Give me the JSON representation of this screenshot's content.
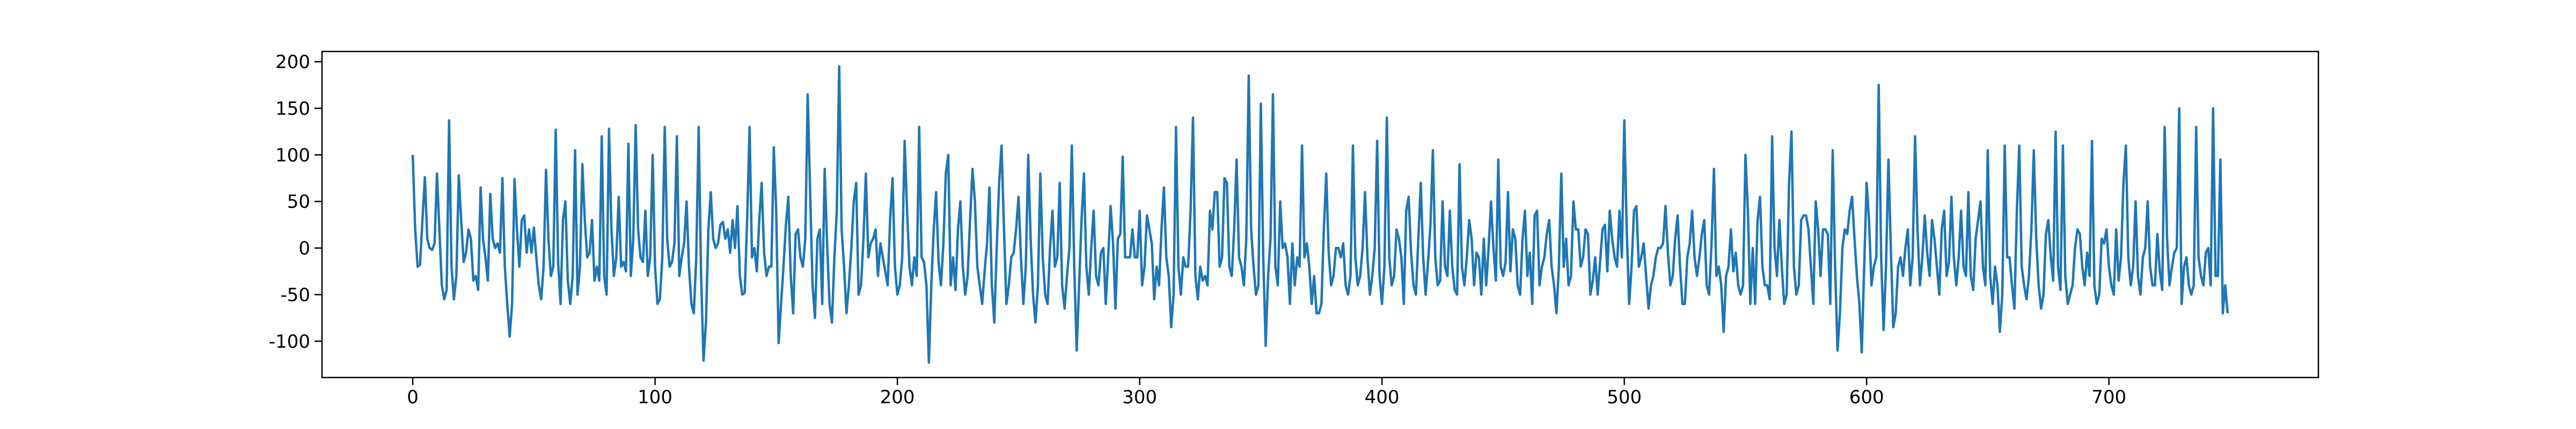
{
  "chart_data": {
    "type": "line",
    "color": "#1f77b4",
    "xlim": [
      -37.45,
      786.45
    ],
    "xticks": [
      0,
      100,
      200,
      300,
      400,
      500,
      600,
      700
    ],
    "ylim": [
      -139,
      211
    ],
    "yticks": [
      -100,
      -50,
      0,
      50,
      100,
      150,
      200
    ],
    "values": [
      100,
      20,
      -20,
      -18,
      30,
      76,
      10,
      0,
      -2,
      5,
      80,
      20,
      -40,
      -55,
      -45,
      137,
      -20,
      -55,
      -30,
      78,
      30,
      -15,
      -5,
      20,
      10,
      -35,
      -30,
      -45,
      65,
      10,
      -10,
      -35,
      58,
      10,
      0,
      5,
      -5,
      75,
      -20,
      -60,
      -95,
      -60,
      74,
      20,
      -20,
      30,
      35,
      -5,
      20,
      -5,
      22,
      -10,
      -40,
      -55,
      -20,
      84,
      10,
      -30,
      -20,
      127,
      -15,
      -60,
      30,
      50,
      -35,
      -60,
      -30,
      105,
      -50,
      -20,
      90,
      30,
      -10,
      -5,
      30,
      -35,
      -20,
      -35,
      120,
      -30,
      -50,
      128,
      20,
      -30,
      -10,
      55,
      -20,
      -15,
      -25,
      112,
      -30,
      10,
      132,
      20,
      -10,
      -15,
      40,
      -30,
      -10,
      100,
      -20,
      -60,
      -55,
      -10,
      130,
      10,
      -20,
      -15,
      5,
      120,
      -30,
      -10,
      5,
      50,
      -20,
      -60,
      -70,
      -10,
      130,
      -30,
      -121,
      -80,
      20,
      60,
      10,
      0,
      5,
      25,
      28,
      10,
      20,
      -5,
      30,
      0,
      45,
      -30,
      -50,
      -48,
      30,
      130,
      -10,
      0,
      -25,
      30,
      70,
      -5,
      -30,
      -20,
      -20,
      108,
      40,
      -102,
      -60,
      -20,
      25,
      55,
      -30,
      -70,
      15,
      20,
      -10,
      -20,
      10,
      165,
      60,
      -40,
      -75,
      10,
      20,
      -60,
      85,
      5,
      -60,
      -80,
      -10,
      40,
      195,
      20,
      -20,
      -70,
      -40,
      0,
      50,
      70,
      -50,
      -40,
      10,
      80,
      -10,
      5,
      10,
      20,
      -30,
      5,
      -10,
      -25,
      -40,
      30,
      75,
      -20,
      -50,
      -40,
      -10,
      115,
      40,
      -20,
      -40,
      -10,
      -30,
      130,
      -10,
      -15,
      -40,
      -123,
      -40,
      20,
      60,
      -15,
      -40,
      5,
      80,
      100,
      -40,
      -10,
      -45,
      20,
      50,
      -20,
      -50,
      -30,
      30,
      85,
      50,
      -20,
      -40,
      -60,
      -25,
      5,
      65,
      -40,
      -80,
      0,
      70,
      110,
      20,
      -60,
      -40,
      -10,
      -5,
      20,
      55,
      -10,
      -60,
      -20,
      100,
      10,
      -50,
      -80,
      -40,
      80,
      -10,
      -50,
      -60,
      0,
      40,
      -20,
      -10,
      70,
      -40,
      -65,
      -30,
      0,
      110,
      -20,
      -110,
      -40,
      30,
      80,
      -20,
      -50,
      0,
      40,
      -30,
      -40,
      -5,
      0,
      -60,
      -10,
      45,
      5,
      -65,
      10,
      15,
      98,
      -10,
      -10,
      -10,
      20,
      -10,
      -10,
      40,
      -40,
      -20,
      35,
      20,
      5,
      -55,
      -20,
      -40,
      20,
      65,
      -10,
      -30,
      -85,
      -50,
      130,
      -20,
      -50,
      -10,
      -20,
      -20,
      40,
      140,
      -30,
      -55,
      -20,
      -35,
      -30,
      -40,
      40,
      20,
      60,
      60,
      -20,
      -10,
      75,
      70,
      -20,
      -30,
      20,
      95,
      -10,
      -20,
      -40,
      10,
      185,
      20,
      -20,
      -50,
      -40,
      155,
      -10,
      -105,
      -30,
      10,
      165,
      -20,
      -40,
      50,
      0,
      5,
      -10,
      -60,
      5,
      -40,
      -10,
      -20,
      110,
      -10,
      5,
      -20,
      -60,
      -30,
      -70,
      -70,
      -60,
      20,
      80,
      -5,
      -40,
      -30,
      0,
      0,
      -10,
      5,
      -40,
      -50,
      -30,
      110,
      -10,
      -40,
      -30,
      0,
      60,
      -10,
      -50,
      -30,
      0,
      115,
      -30,
      -60,
      -20,
      140,
      -10,
      -40,
      -30,
      20,
      10,
      -10,
      -60,
      40,
      55,
      -5,
      -40,
      -50,
      10,
      70,
      -10,
      -50,
      -15,
      25,
      105,
      -10,
      -40,
      -35,
      50,
      -20,
      -30,
      40,
      -20,
      -45,
      -50,
      90,
      -20,
      -40,
      -10,
      30,
      10,
      -40,
      -5,
      -10,
      -50,
      10,
      -40,
      0,
      50,
      0,
      -35,
      95,
      -20,
      -30,
      -15,
      60,
      -25,
      20,
      10,
      -40,
      -50,
      10,
      40,
      -30,
      -5,
      -60,
      35,
      40,
      -40,
      -20,
      -10,
      15,
      30,
      -20,
      -40,
      -70,
      -20,
      80,
      -20,
      10,
      -40,
      -30,
      50,
      20,
      20,
      -20,
      -10,
      20,
      15,
      -50,
      -35,
      -10,
      -50,
      -15,
      20,
      25,
      -25,
      40,
      10,
      -10,
      -20,
      40,
      -10,
      137,
      20,
      -60,
      -20,
      40,
      45,
      -20,
      -10,
      5,
      -30,
      -65,
      -40,
      -30,
      -10,
      0,
      0,
      5,
      45,
      -5,
      -40,
      -30,
      10,
      35,
      -20,
      -60,
      -60,
      -10,
      5,
      40,
      -10,
      -30,
      -10,
      15,
      30,
      -40,
      -50,
      5,
      85,
      -30,
      -20,
      -40,
      -90,
      -30,
      -20,
      20,
      -25,
      -5,
      -40,
      -50,
      -40,
      100,
      40,
      -60,
      0,
      -60,
      30,
      55,
      -20,
      -40,
      -40,
      -55,
      120,
      0,
      -30,
      30,
      -20,
      -60,
      -50,
      70,
      125,
      -20,
      -50,
      -40,
      30,
      35,
      35,
      20,
      -20,
      -60,
      50,
      20,
      -30,
      20,
      20,
      15,
      -60,
      105,
      -20,
      -110,
      -70,
      0,
      20,
      15,
      40,
      55,
      10,
      -30,
      -60,
      -112,
      -20,
      70,
      30,
      -40,
      -20,
      -10,
      175,
      -10,
      -88,
      -20,
      95,
      0,
      -85,
      -70,
      -20,
      -10,
      -30,
      0,
      20,
      -40,
      -10,
      120,
      20,
      -40,
      -10,
      35,
      -5,
      -30,
      30,
      10,
      -20,
      -50,
      20,
      40,
      -30,
      -15,
      55,
      -10,
      -40,
      -10,
      40,
      -20,
      -30,
      60,
      -30,
      -45,
      10,
      30,
      50,
      -20,
      -40,
      105,
      -30,
      -60,
      -20,
      -40,
      -90,
      -50,
      110,
      -10,
      -10,
      -40,
      -65,
      40,
      110,
      -20,
      -40,
      -55,
      -30,
      20,
      105,
      10,
      -40,
      -65,
      -50,
      15,
      30,
      -10,
      -35,
      125,
      -20,
      -45,
      110,
      -30,
      -60,
      -50,
      -40,
      0,
      20,
      15,
      -20,
      -40,
      -5,
      -30,
      115,
      -40,
      -60,
      -50,
      10,
      5,
      20,
      -20,
      -40,
      -50,
      20,
      -35,
      -10,
      70,
      110,
      -10,
      -40,
      -20,
      50,
      -30,
      -50,
      -10,
      0,
      50,
      -20,
      -40,
      -40,
      15,
      -25,
      -45,
      130,
      10,
      -40,
      -20,
      -5,
      0,
      150,
      -60,
      -20,
      -10,
      -40,
      -50,
      -40,
      130,
      -10,
      -30,
      -40,
      -5,
      0,
      -40,
      150,
      -30,
      -30,
      95,
      -70,
      -40,
      -70
    ]
  }
}
